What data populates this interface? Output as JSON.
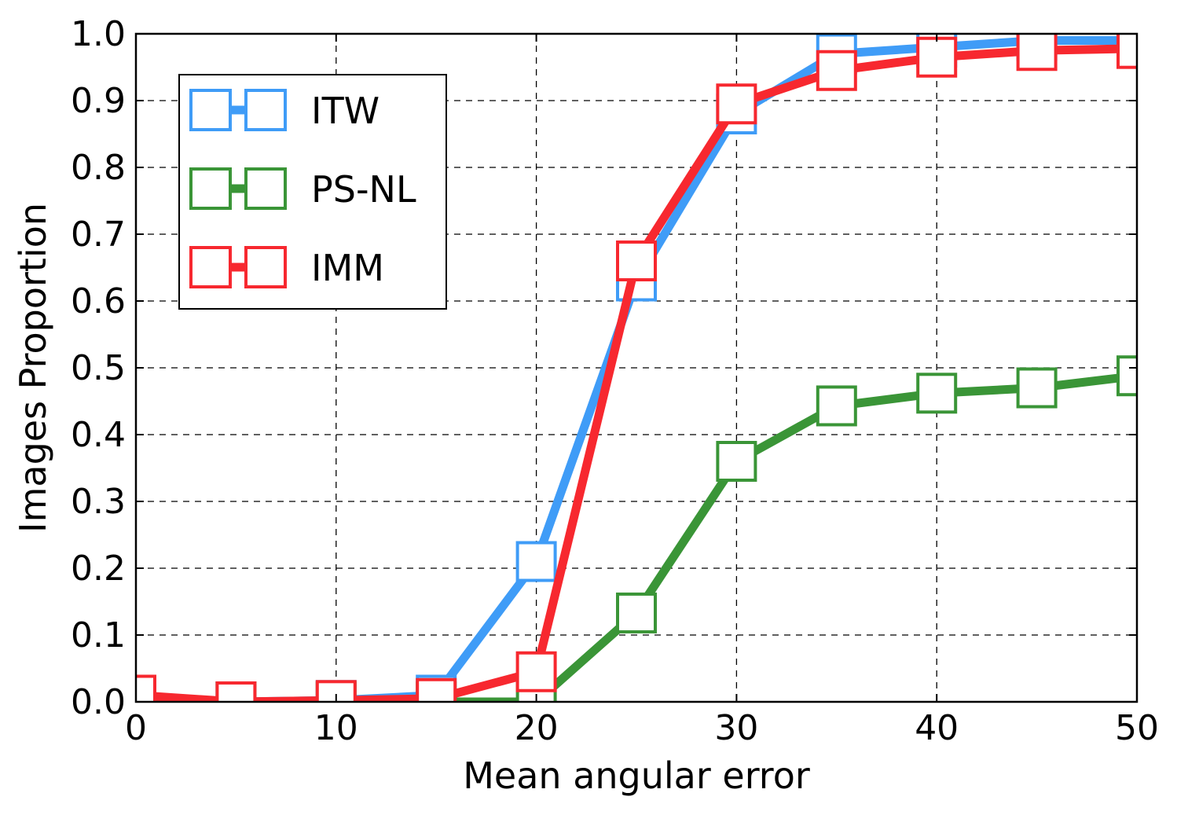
{
  "chart_data": {
    "type": "line",
    "xlabel": "Mean angular error",
    "ylabel": "Images Proportion",
    "xlim": [
      0,
      50
    ],
    "ylim": [
      0,
      1
    ],
    "x_ticks": [
      0,
      10,
      20,
      30,
      40,
      50
    ],
    "y_ticks": [
      0.0,
      0.1,
      0.2,
      0.3,
      0.4,
      0.5,
      0.6,
      0.7,
      0.8,
      0.9,
      1.0
    ],
    "x_tick_labels": [
      "0",
      "10",
      "20",
      "30",
      "40",
      "50"
    ],
    "y_tick_labels": [
      "0.0",
      "0.1",
      "0.2",
      "0.3",
      "0.4",
      "0.5",
      "0.6",
      "0.7",
      "0.8",
      "0.9",
      "1.0"
    ],
    "grid": true,
    "grid_style": "dashed",
    "legend_position": "top-left",
    "marker": "square",
    "x": [
      0,
      5,
      10,
      15,
      20,
      25,
      30,
      35,
      40,
      45,
      50
    ],
    "series": [
      {
        "name": "ITW",
        "color": "#3f9cf7",
        "values": [
          0.0,
          0.0,
          0.002,
          0.01,
          0.21,
          0.63,
          0.88,
          0.97,
          0.98,
          0.99,
          0.99
        ]
      },
      {
        "name": "PS-NL",
        "color": "#3a9537",
        "values": [
          0.0,
          0.0,
          0.0,
          0.0,
          0.0,
          0.133,
          0.36,
          0.443,
          0.462,
          0.47,
          0.488
        ]
      },
      {
        "name": "IMM",
        "color": "#f7282f",
        "values": [
          0.01,
          0.0,
          0.002,
          0.005,
          0.045,
          0.66,
          0.895,
          0.945,
          0.965,
          0.975,
          0.978
        ]
      }
    ]
  }
}
